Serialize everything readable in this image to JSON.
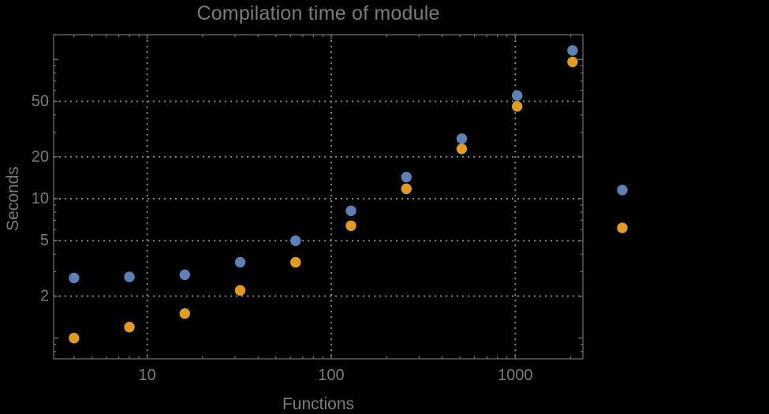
{
  "title": "Compilation time of module",
  "x_axis_label": "Functions",
  "y_axis_label": "Seconds",
  "chart_data": {
    "type": "scatter",
    "title": "Compilation time of module",
    "xlabel": "Functions",
    "ylabel": "Seconds",
    "x_scale": "log",
    "y_scale": "log",
    "xlim": [
      3.1,
      2330
    ],
    "ylim": [
      0.71,
      150.5
    ],
    "x": [
      4,
      8,
      16,
      32,
      64,
      128,
      256,
      512,
      1024,
      2048
    ],
    "series": [
      {
        "name": "series-blue",
        "marker_color": "#5e81b5",
        "values": [
          2.7,
          2.75,
          2.85,
          3.5,
          5.0,
          8.2,
          14.3,
          27,
          55,
          116
        ]
      },
      {
        "name": "series-orange",
        "marker_color": "#e19c24",
        "values": [
          1.0,
          1.2,
          1.5,
          2.2,
          3.5,
          6.4,
          11.8,
          22.8,
          46,
          96
        ]
      }
    ],
    "x_tick_labels": [
      10,
      100,
      1000
    ],
    "y_tick_labels": [
      2,
      5,
      10,
      20,
      50
    ],
    "x_major_ticks": [
      10,
      100,
      1000
    ],
    "y_major_ticks": [
      1,
      2,
      5,
      10,
      20,
      50,
      100
    ],
    "grid": "dotted",
    "grid_positions_x": [
      10,
      100,
      1000
    ],
    "grid_positions_y": [
      2,
      5,
      10,
      20,
      50
    ],
    "legend": {
      "position": "outside-right",
      "markers": [
        {
          "name": "legend-marker-blue",
          "color": "#5e81b5"
        },
        {
          "name": "legend-marker-orange",
          "color": "#e19c24"
        }
      ]
    }
  },
  "colors": {
    "background": "#000000",
    "frame": "#6d6d6d",
    "grid": "#7f7f7f",
    "text": "#7b7b7b",
    "series_blue": "#5e81b5",
    "series_orange": "#e19c24"
  }
}
